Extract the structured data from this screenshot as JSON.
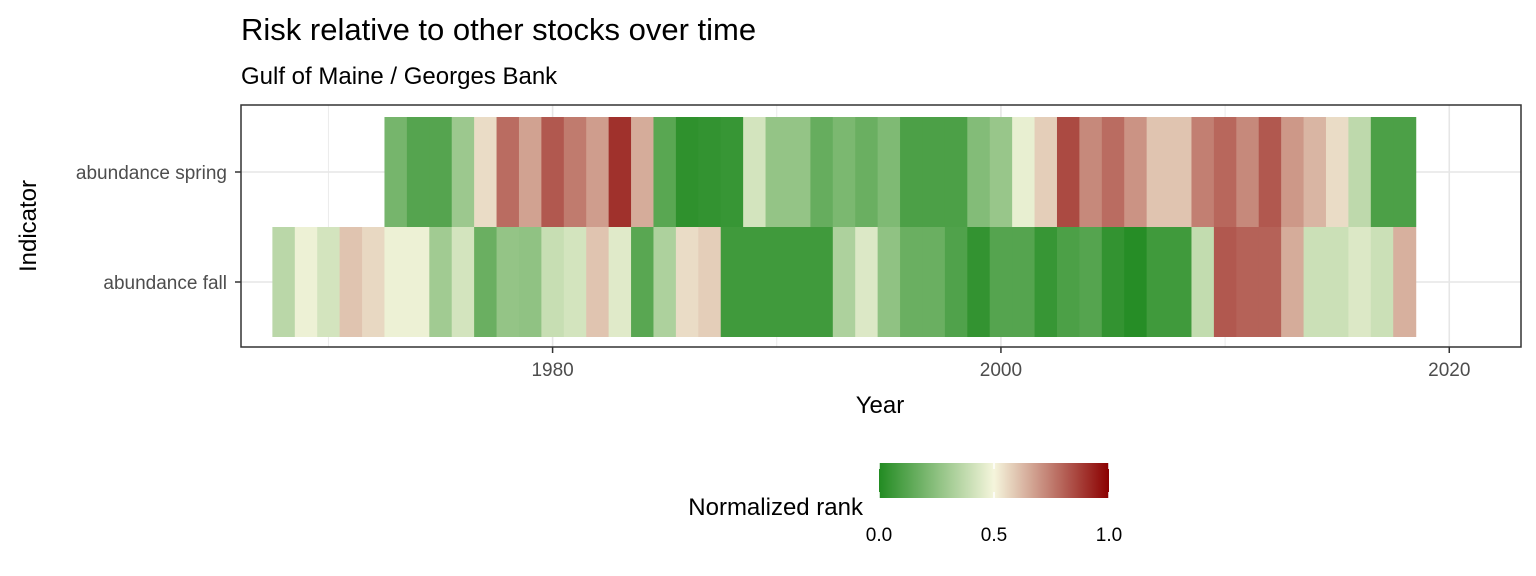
{
  "chart_data": {
    "type": "heatmap",
    "title": "Risk relative to other stocks over time",
    "subtitle": "Gulf of Maine / Georges Bank",
    "xlabel": "Year",
    "ylabel": "Indicator",
    "xlim": [
      1966.1,
      2023.2
    ],
    "x_ticks": [
      1980,
      2000,
      2020
    ],
    "grid": true,
    "legend": {
      "title": "Normalized rank",
      "position": "bottom",
      "range": [
        0,
        1
      ],
      "ticks": [
        "0.0",
        "0.5",
        "1.0"
      ],
      "colors": {
        "low": "#228B22",
        "mid": "#F5F5DC",
        "high": "#8B0000"
      }
    },
    "rows": [
      {
        "label": "abundance spring",
        "start_year": 1973,
        "values": [
          0.2,
          0.12,
          0.12,
          0.29,
          0.55,
          0.78,
          0.67,
          0.82,
          0.75,
          0.68,
          0.9,
          0.65,
          0.13,
          0.03,
          0.04,
          0.05,
          0.42,
          0.27,
          0.27,
          0.16,
          0.21,
          0.17,
          0.22,
          0.1,
          0.1,
          0.1,
          0.23,
          0.28,
          0.47,
          0.58,
          0.85,
          0.72,
          0.78,
          0.7,
          0.6,
          0.6,
          0.74,
          0.79,
          0.72,
          0.82,
          0.69,
          0.63,
          0.55,
          0.37,
          0.1,
          0.1
        ]
      },
      {
        "label": "abundance fall",
        "start_year": 1968,
        "values": [
          0.36,
          0.48,
          0.42,
          0.6,
          0.56,
          0.48,
          0.48,
          0.3,
          0.42,
          0.17,
          0.27,
          0.26,
          0.39,
          0.42,
          0.6,
          0.45,
          0.13,
          0.33,
          0.55,
          0.58,
          0.07,
          0.07,
          0.07,
          0.07,
          0.07,
          0.33,
          0.44,
          0.26,
          0.17,
          0.17,
          0.11,
          0.04,
          0.12,
          0.12,
          0.05,
          0.1,
          0.12,
          0.04,
          0.01,
          0.07,
          0.07,
          0.38,
          0.82,
          0.8,
          0.8,
          0.65,
          0.4,
          0.4,
          0.44,
          0.4,
          0.64
        ]
      }
    ]
  }
}
